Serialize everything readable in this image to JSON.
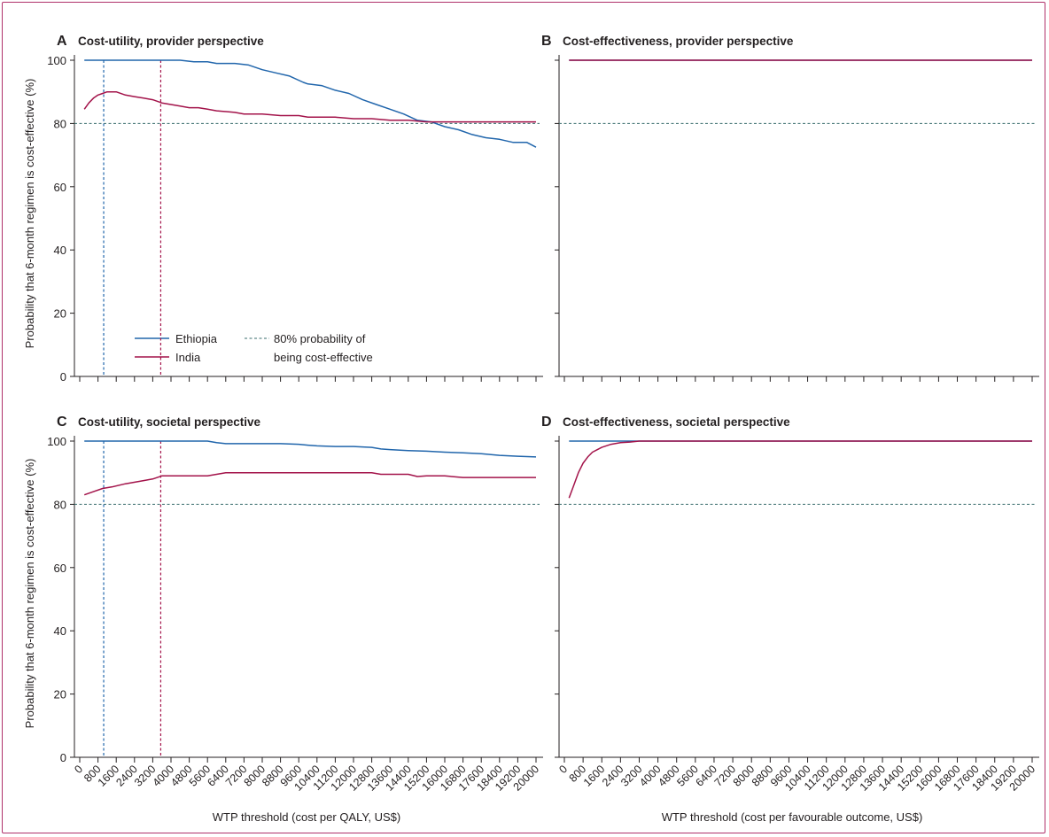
{
  "colors": {
    "ethiopia": "#2166ac",
    "india": "#a3134a",
    "reference": "#3a6e6e",
    "axis": "#231f20",
    "frame": "#b0306a"
  },
  "y_axis_title": "Probability that 6-month regimen is cost-effective (%)",
  "x_axis_title_left": "WTP threshold (cost per QALY, US$)",
  "x_axis_title_right": "WTP threshold (cost per favourable outcome, US$)",
  "legend": {
    "ethiopia": "Ethiopia",
    "india": "India",
    "reference_line1": "80% probability of",
    "reference_line2": "being cost-effective"
  },
  "chart_data": [
    {
      "panel": "A",
      "title": "Cost-utility, provider perspective",
      "type": "line",
      "xlabel": "WTP threshold (cost per QALY, US$)",
      "ylabel": "Probability that 6-month regimen is cost-effective (%)",
      "xlim": [
        0,
        20000
      ],
      "ylim": [
        0,
        100
      ],
      "x_ticks": [
        0,
        800,
        1600,
        2400,
        3200,
        4000,
        4800,
        5600,
        6400,
        7200,
        8000,
        8800,
        9600,
        10400,
        11200,
        12000,
        12800,
        13600,
        14400,
        15200,
        16000,
        16800,
        17600,
        18400,
        19200,
        20000
      ],
      "y_ticks": [
        0,
        20,
        40,
        60,
        80,
        100
      ],
      "reference_hline": 80,
      "reference_vlines": [
        {
          "x": 1050,
          "series": "Ethiopia"
        },
        {
          "x": 3550,
          "series": "India"
        }
      ],
      "series": [
        {
          "name": "Ethiopia",
          "x": [
            200,
            1000,
            2000,
            3000,
            4000,
            4400,
            5000,
            5600,
            6000,
            6800,
            7400,
            8000,
            8600,
            9200,
            9800,
            10000,
            10600,
            11200,
            11800,
            12400,
            13000,
            13600,
            14200,
            14800,
            15400,
            16000,
            16600,
            17200,
            17800,
            18400,
            19000,
            19600,
            20000
          ],
          "y": [
            100,
            100,
            100,
            100,
            100,
            100,
            99.5,
            99.5,
            99,
            99,
            98.5,
            97,
            96,
            95,
            93,
            92.5,
            92,
            90.5,
            89.5,
            87.5,
            86,
            84.5,
            83,
            81,
            80.5,
            79,
            78,
            76.5,
            75.5,
            75,
            74,
            74,
            72.5
          ]
        },
        {
          "name": "India",
          "x": [
            200,
            400,
            600,
            800,
            1000,
            1200,
            1400,
            1600,
            2000,
            2400,
            2800,
            3200,
            3600,
            4000,
            4400,
            4800,
            5200,
            5600,
            6000,
            6800,
            7200,
            8000,
            8800,
            9600,
            10000,
            10800,
            11200,
            12000,
            12800,
            13600,
            14400,
            15200,
            16000,
            16800,
            17600,
            18000,
            18400,
            20000
          ],
          "y": [
            84.5,
            86.5,
            88,
            89,
            89.5,
            90,
            90,
            90,
            89,
            88.5,
            88,
            87.5,
            86.5,
            86,
            85.5,
            85,
            85,
            84.5,
            84,
            83.5,
            83,
            83,
            82.5,
            82.5,
            82,
            82,
            82,
            81.5,
            81.5,
            81,
            81,
            80.5,
            80.5,
            80.5,
            80.5,
            80.5,
            80.5,
            80.5
          ]
        }
      ]
    },
    {
      "panel": "B",
      "title": "Cost-effectiveness, provider perspective",
      "type": "line",
      "xlabel": "WTP threshold (cost per favourable outcome, US$)",
      "xlim": [
        0,
        20000
      ],
      "ylim": [
        0,
        100
      ],
      "x_ticks": [
        0,
        800,
        1600,
        2400,
        3200,
        4000,
        4800,
        5600,
        6400,
        7200,
        8000,
        8800,
        9600,
        10400,
        11200,
        12000,
        12800,
        13600,
        14400,
        15200,
        16000,
        16800,
        17600,
        18400,
        19200,
        20000
      ],
      "y_ticks": [
        0,
        20,
        40,
        60,
        80,
        100
      ],
      "reference_hline": 80,
      "series": [
        {
          "name": "Ethiopia",
          "x": [
            200,
            20000
          ],
          "y": [
            100,
            100
          ]
        },
        {
          "name": "India",
          "x": [
            200,
            20000
          ],
          "y": [
            100,
            100
          ]
        }
      ]
    },
    {
      "panel": "C",
      "title": "Cost-utility, societal perspective",
      "type": "line",
      "xlabel": "WTP threshold (cost per QALY, US$)",
      "ylabel": "Probability that 6-month regimen is cost-effective (%)",
      "xlim": [
        0,
        20000
      ],
      "ylim": [
        0,
        100
      ],
      "x_ticks": [
        0,
        800,
        1600,
        2400,
        3200,
        4000,
        4800,
        5600,
        6400,
        7200,
        8000,
        8800,
        9600,
        10400,
        11200,
        12000,
        12800,
        13600,
        14400,
        15200,
        16000,
        16800,
        17600,
        18400,
        19200,
        20000
      ],
      "y_ticks": [
        0,
        20,
        40,
        60,
        80,
        100
      ],
      "reference_hline": 80,
      "reference_vlines": [
        {
          "x": 1050,
          "series": "Ethiopia"
        },
        {
          "x": 3550,
          "series": "India"
        }
      ],
      "series": [
        {
          "name": "Ethiopia",
          "x": [
            200,
            2000,
            4000,
            5600,
            6000,
            6400,
            7200,
            8000,
            8800,
            9600,
            10000,
            10400,
            11200,
            12000,
            12800,
            13200,
            13600,
            14400,
            15200,
            16000,
            16800,
            17600,
            18400,
            19200,
            20000
          ],
          "y": [
            100,
            100,
            100,
            100,
            99.5,
            99.2,
            99.2,
            99.2,
            99.2,
            99,
            98.7,
            98.5,
            98.3,
            98.3,
            98,
            97.5,
            97.3,
            97,
            96.8,
            96.5,
            96.3,
            96,
            95.5,
            95.2,
            95
          ]
        },
        {
          "name": "India",
          "x": [
            200,
            600,
            1000,
            1400,
            2000,
            2800,
            3200,
            3600,
            4400,
            5600,
            6400,
            8000,
            9600,
            11200,
            12800,
            13200,
            14400,
            14800,
            15200,
            16000,
            16800,
            17600,
            18400,
            19200,
            20000
          ],
          "y": [
            83,
            84,
            85,
            85.5,
            86.5,
            87.5,
            88,
            89,
            89,
            89,
            90,
            90,
            90,
            90,
            90,
            89.5,
            89.5,
            88.8,
            89,
            89,
            88.5,
            88.5,
            88.5,
            88.5,
            88.5
          ]
        }
      ]
    },
    {
      "panel": "D",
      "title": "Cost-effectiveness, societal perspective",
      "type": "line",
      "xlabel": "WTP threshold (cost per favourable outcome, US$)",
      "xlim": [
        0,
        20000
      ],
      "ylim": [
        0,
        100
      ],
      "x_ticks": [
        0,
        800,
        1600,
        2400,
        3200,
        4000,
        4800,
        5600,
        6400,
        7200,
        8000,
        8800,
        9600,
        10400,
        11200,
        12000,
        12800,
        13600,
        14400,
        15200,
        16000,
        16800,
        17600,
        18400,
        19200,
        20000
      ],
      "y_ticks": [
        0,
        20,
        40,
        60,
        80,
        100
      ],
      "reference_hline": 80,
      "series": [
        {
          "name": "Ethiopia",
          "x": [
            200,
            20000
          ],
          "y": [
            100,
            100
          ]
        },
        {
          "name": "India",
          "x": [
            200,
            400,
            600,
            800,
            1000,
            1200,
            1600,
            2000,
            2400,
            2800,
            3200,
            4000,
            20000
          ],
          "y": [
            82,
            86,
            90,
            93,
            95,
            96.5,
            98,
            99,
            99.5,
            99.7,
            100,
            100,
            100
          ]
        }
      ]
    }
  ]
}
